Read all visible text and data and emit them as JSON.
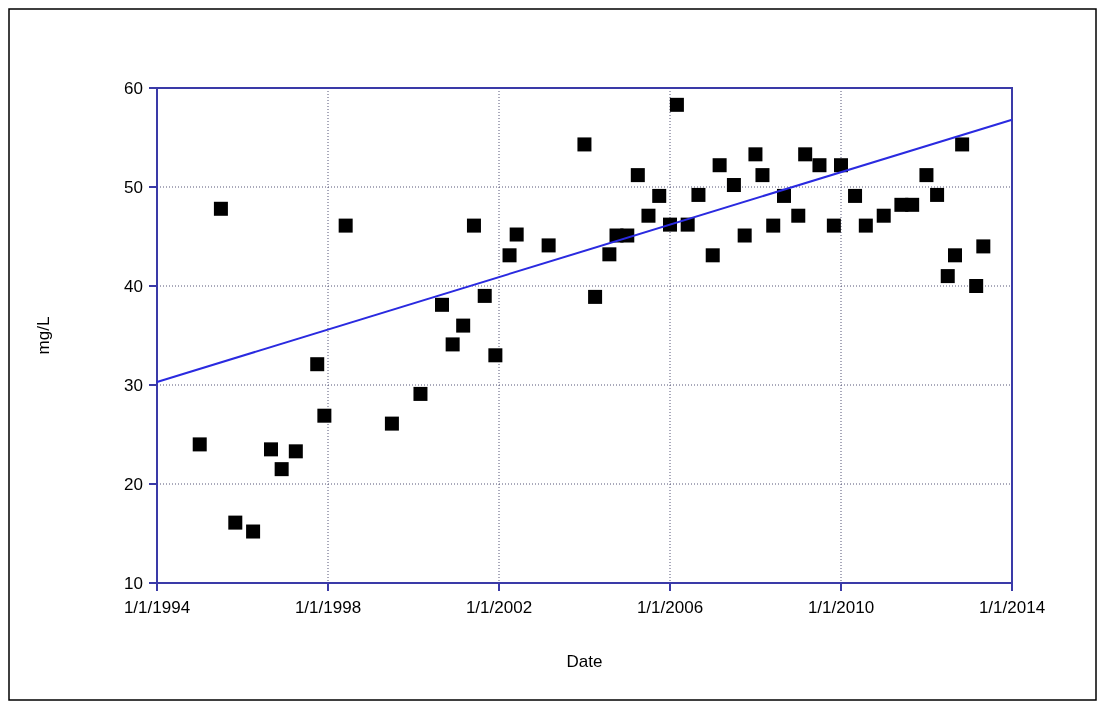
{
  "chart_data": {
    "type": "scatter",
    "xlabel": "Date",
    "ylabel": "mg/L",
    "xlim": [
      "1994-01-01",
      "2014-01-01"
    ],
    "xticks": [
      {
        "value": "1994-01-01",
        "label": "1/1/1994"
      },
      {
        "value": "1998-01-01",
        "label": "1/1/1998"
      },
      {
        "value": "2002-01-01",
        "label": "1/1/2002"
      },
      {
        "value": "2006-01-01",
        "label": "1/1/2006"
      },
      {
        "value": "2010-01-01",
        "label": "1/1/2010"
      },
      {
        "value": "2014-01-01",
        "label": "1/1/2014"
      }
    ],
    "ylim": [
      10,
      60
    ],
    "yticks": [
      10,
      20,
      30,
      40,
      50,
      60
    ],
    "grid": true,
    "series": [
      {
        "marker": "square",
        "color": "#000000",
        "x": [
          "1995-01",
          "1995-07",
          "1995-11",
          "1996-04",
          "1996-09",
          "1996-12",
          "1997-04",
          "1997-10",
          "1997-12",
          "1998-06",
          "1999-07",
          "2000-03",
          "2000-09",
          "2000-12",
          "2001-03",
          "2001-06",
          "2001-09",
          "2001-12",
          "2002-04",
          "2002-06",
          "2003-03",
          "2004-01",
          "2004-04",
          "2004-08",
          "2004-10",
          "2005-01",
          "2005-04",
          "2005-07",
          "2005-10",
          "2006-01",
          "2006-03",
          "2006-06",
          "2006-09",
          "2007-01",
          "2007-03",
          "2007-07",
          "2007-10",
          "2008-01",
          "2008-03",
          "2008-06",
          "2008-09",
          "2009-01",
          "2009-03",
          "2009-07",
          "2009-11",
          "2010-01",
          "2010-05",
          "2010-08",
          "2011-01",
          "2011-06",
          "2011-09",
          "2012-01",
          "2012-04",
          "2012-07",
          "2012-09",
          "2012-11",
          "2013-03",
          "2013-05"
        ],
        "values": [
          24,
          47.8,
          16.1,
          15.2,
          23.5,
          21.5,
          23.3,
          32.1,
          26.9,
          46.1,
          26.1,
          29.1,
          38.1,
          34.1,
          36,
          46.1,
          39,
          33,
          43.1,
          45.2,
          44.1,
          54.3,
          38.9,
          43.2,
          45.1,
          45.1,
          51.2,
          47.1,
          49.1,
          46.2,
          58.3,
          46.2,
          49.2,
          43.1,
          52.2,
          50.2,
          45.1,
          53.3,
          51.2,
          46.1,
          49.1,
          47.1,
          53.3,
          52.2,
          46.1,
          52.2,
          49.1,
          46.1,
          47.1,
          48.2,
          48.2,
          51.2,
          49.2,
          41,
          43.1,
          54.3,
          40,
          44
        ]
      },
      {
        "type": "line",
        "color": "#2a2ae0",
        "x": [
          "1994-01-01",
          "2014-01-01"
        ],
        "values": [
          30.3,
          56.8
        ]
      }
    ]
  }
}
